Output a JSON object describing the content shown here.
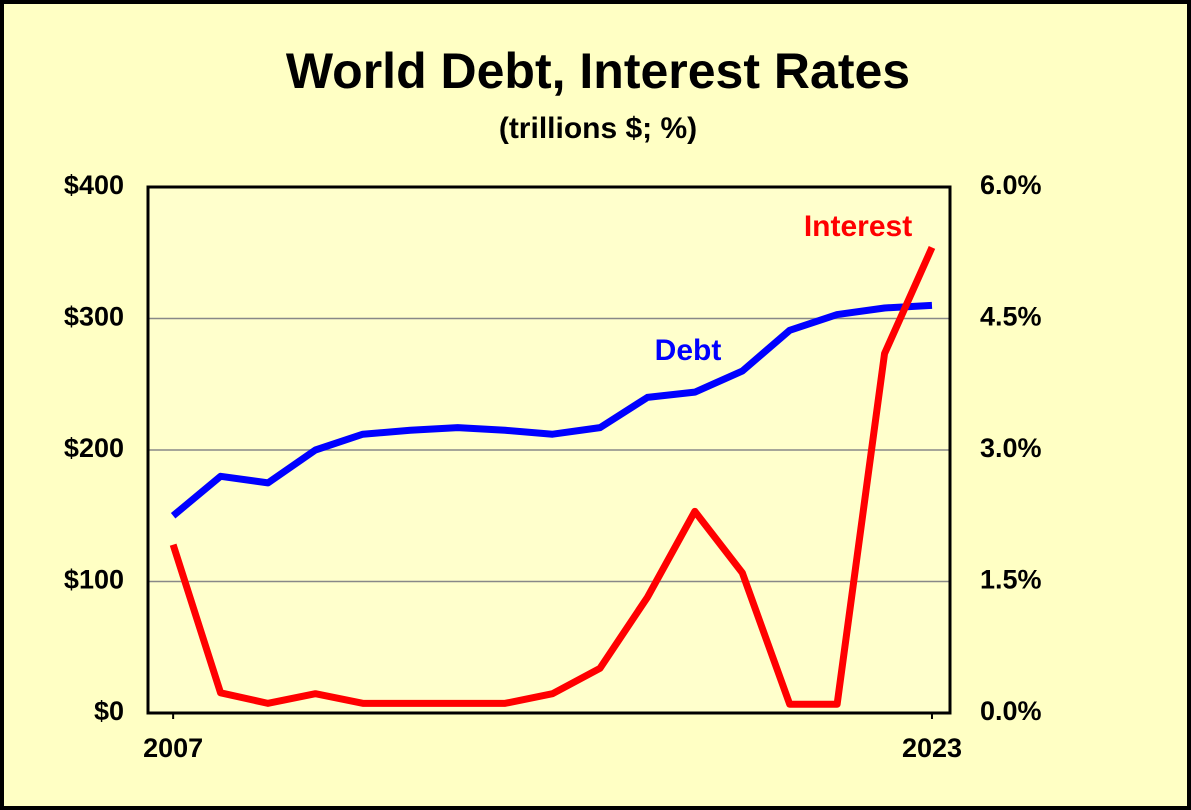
{
  "chart_data": {
    "type": "line",
    "title": "World Debt, Interest Rates",
    "subtitle": "(trillions $; %)",
    "x": [
      2007,
      2008,
      2009,
      2010,
      2011,
      2012,
      2013,
      2014,
      2015,
      2016,
      2017,
      2018,
      2019,
      2020,
      2021,
      2022,
      2023
    ],
    "series": [
      {
        "name": "Debt",
        "color": "#0000ff",
        "values": [
          150,
          180,
          175,
          200,
          212,
          215,
          217,
          215,
          212,
          217,
          240,
          244,
          260,
          291,
          303,
          308,
          310
        ]
      },
      {
        "name": "Interest",
        "color": "#ff0000",
        "axis": "y2",
        "values": [
          1.92,
          0.23,
          0.11,
          0.22,
          0.11,
          0.11,
          0.11,
          0.11,
          0.22,
          0.51,
          1.32,
          2.3,
          1.6,
          0.1,
          0.1,
          4.1,
          5.31
        ]
      }
    ],
    "xlim": [
      2006.47,
      2023.38
    ],
    "xticks": [
      2007,
      2023
    ],
    "ylim": [
      0,
      400
    ],
    "yticks": [
      {
        "value": 0,
        "label": "$0"
      },
      {
        "value": 100,
        "label": "$100"
      },
      {
        "value": 200,
        "label": "$200"
      },
      {
        "value": 300,
        "label": "$300"
      },
      {
        "value": 400,
        "label": "$400"
      }
    ],
    "y2lim": [
      0,
      6
    ],
    "y2ticks": [
      {
        "value": 0,
        "label": "0.0%"
      },
      {
        "value": 1.5,
        "label": "1.5%"
      },
      {
        "value": 3,
        "label": "3.0%"
      },
      {
        "value": 4.5,
        "label": "4.5%"
      },
      {
        "value": 6,
        "label": "6.0%"
      }
    ],
    "grid": true
  }
}
